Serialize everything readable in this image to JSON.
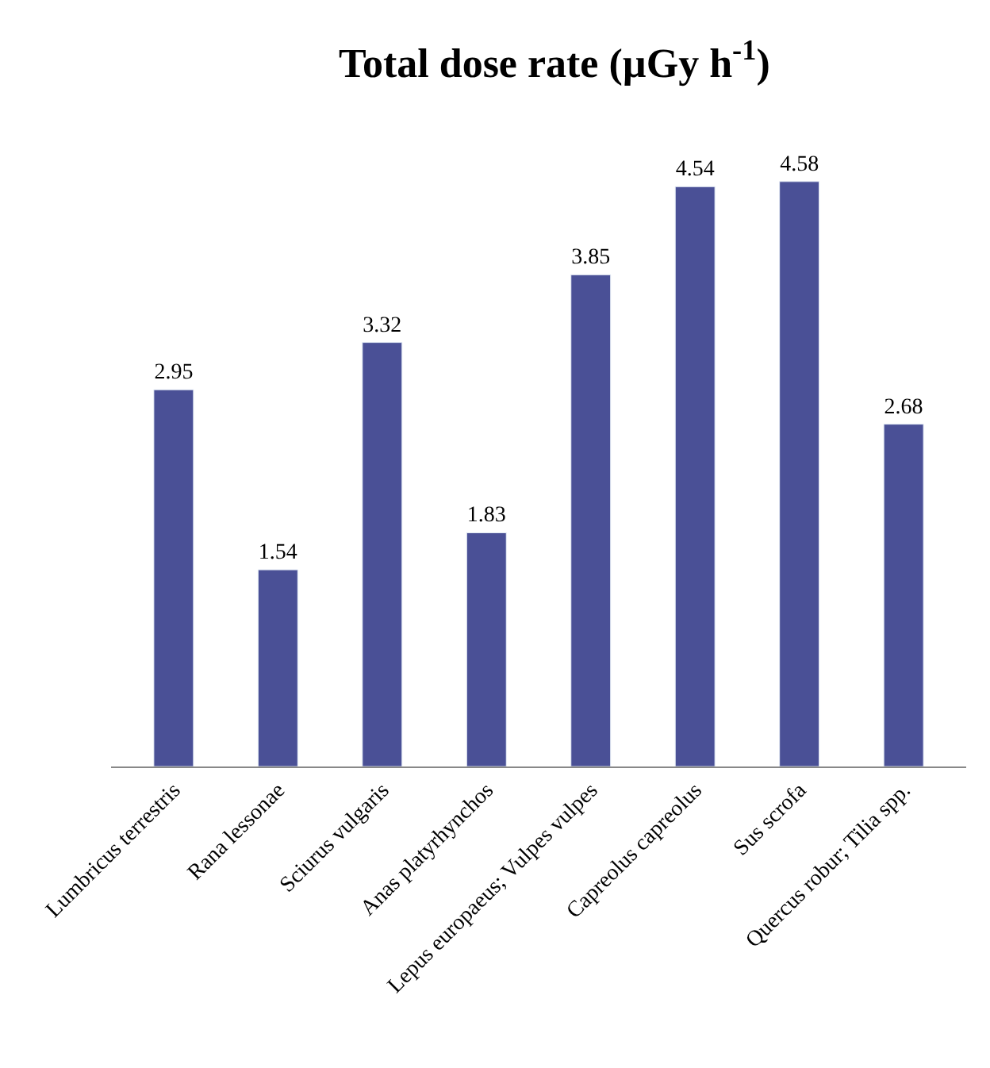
{
  "chart_data": {
    "type": "bar",
    "title": "Total dose rate (µGy h$^{-1}$)",
    "categories": [
      "Lumbricus terrestris",
      "Rana lessonae",
      "Sciurus vulgaris",
      "Anas platyrhynchos",
      "Lepus europaeus; Vulpes vulpes",
      "Capreolus capreolus",
      "Sus scrofa",
      "Quercus robur; Tilia spp."
    ],
    "values": [
      2.95,
      1.54,
      3.32,
      1.83,
      3.85,
      4.54,
      4.58,
      2.68
    ],
    "color": "#4a5096",
    "data_labels": true
  }
}
